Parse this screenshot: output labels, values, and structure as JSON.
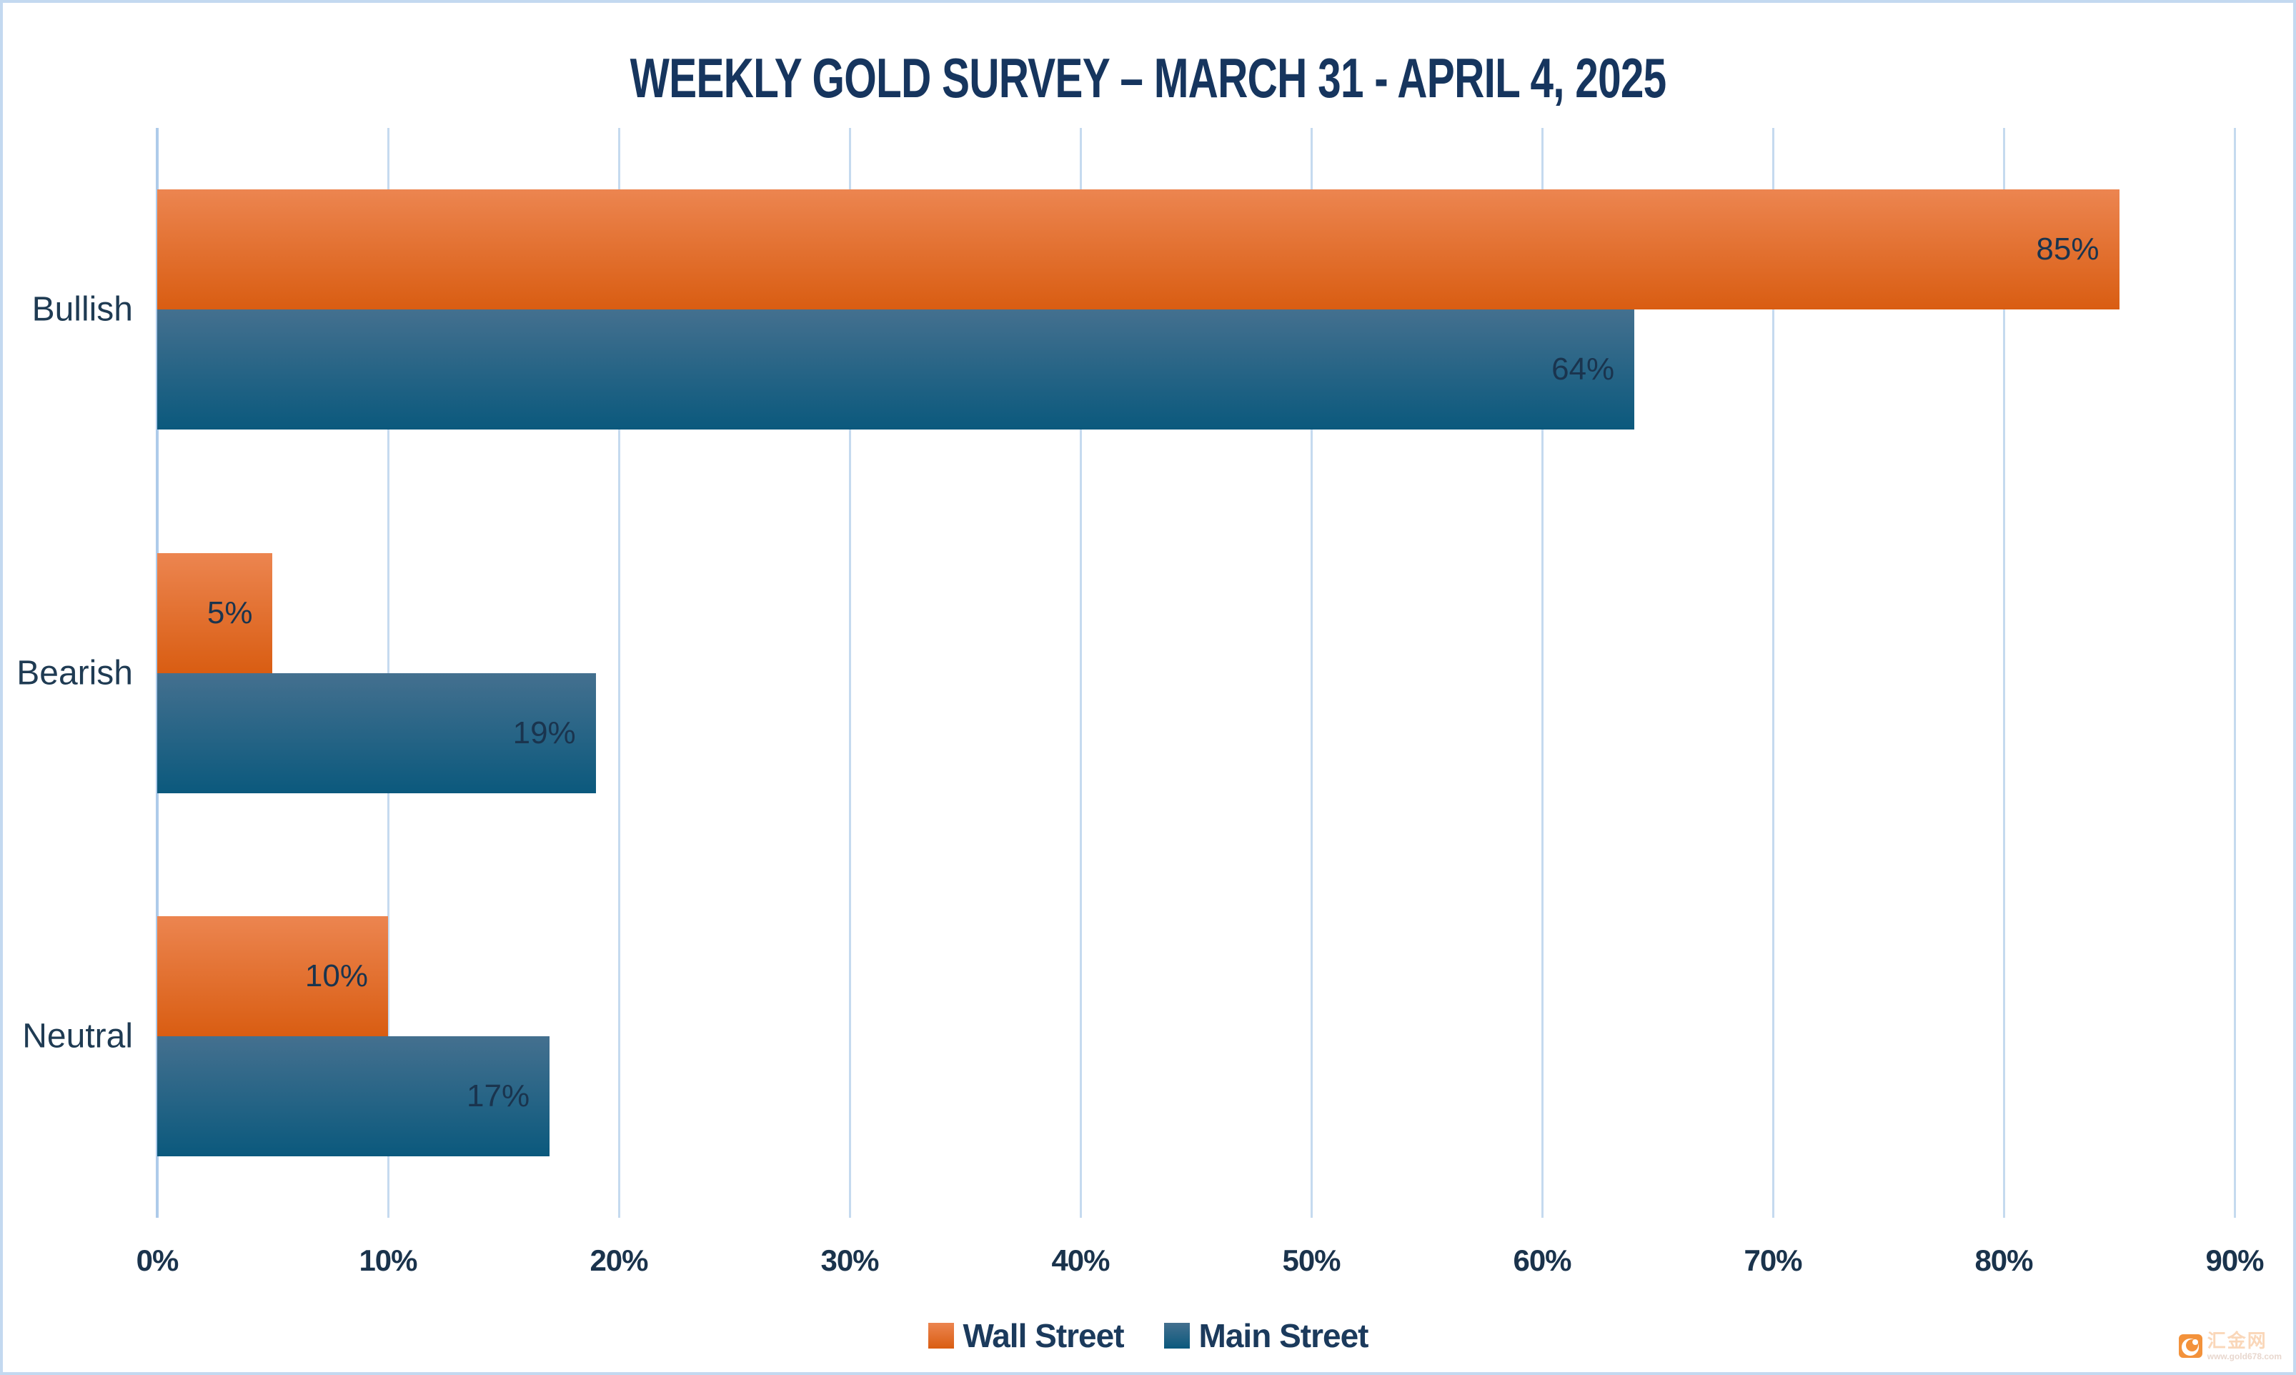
{
  "title": "WEEKLY GOLD SURVEY – MARCH 31 - APRIL 4, 2025",
  "chart_data": {
    "type": "bar",
    "orientation": "horizontal",
    "title": "WEEKLY GOLD SURVEY – MARCH 31 - APRIL 4, 2025",
    "categories": [
      "Bullish",
      "Bearish",
      "Neutral"
    ],
    "series": [
      {
        "name": "Wall Street",
        "color_top": "#EC8550",
        "color_bottom": "#D95D12",
        "values": [
          85,
          5,
          10
        ]
      },
      {
        "name": "Main Street",
        "color_top": "#44708F",
        "color_bottom": "#0B597D",
        "values": [
          64,
          19,
          17
        ]
      }
    ],
    "value_suffix": "%",
    "xlim": [
      0,
      90
    ],
    "x_ticks": [
      "0%",
      "10%",
      "20%",
      "30%",
      "40%",
      "50%",
      "60%",
      "70%",
      "80%",
      "90%"
    ],
    "grid": true,
    "gridline_color": "#C5DAEF",
    "legend_position": "bottom",
    "data_labels": true,
    "xlabel": "",
    "ylabel": ""
  },
  "legend": {
    "items": [
      {
        "label": "Wall Street",
        "color_top": "#EC8550",
        "color_bottom": "#D95D12"
      },
      {
        "label": "Main Street",
        "color_top": "#44708F",
        "color_bottom": "#0B597D"
      }
    ]
  },
  "watermark": {
    "site_name": "汇金网",
    "site_url": "www.gold678.com"
  },
  "colors": {
    "title_text": "#16355E",
    "label_text": "#1F3B53",
    "axis_text": "#1A334C",
    "border": "#C3D9F0"
  }
}
